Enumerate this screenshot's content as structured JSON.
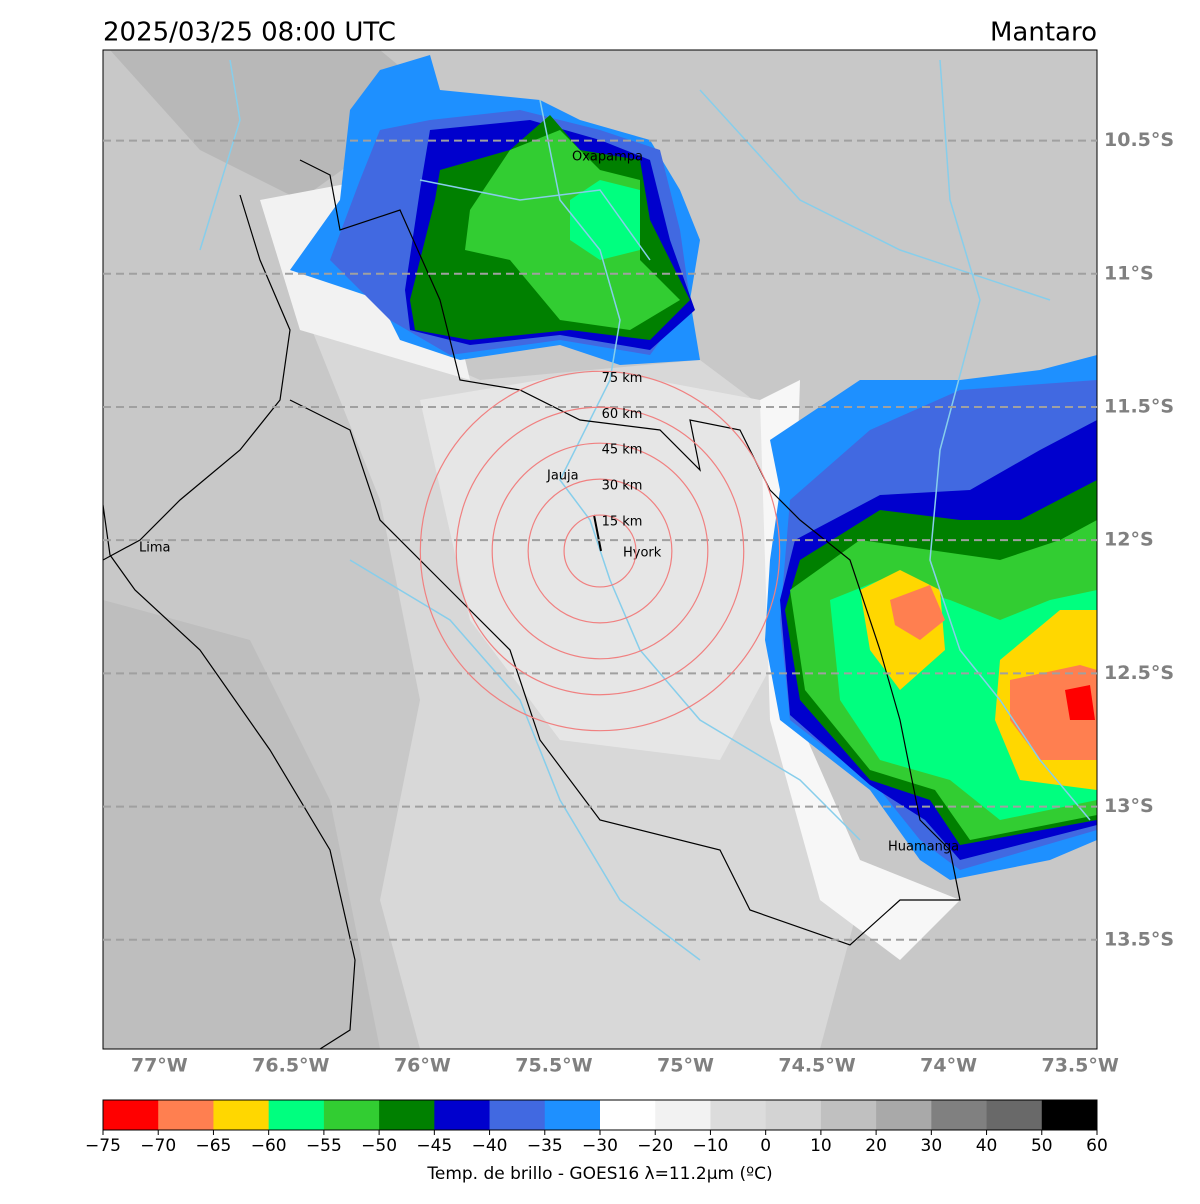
{
  "header": {
    "title": "2025/03/25 08:00 UTC",
    "region": "Mantaro"
  },
  "map": {
    "xlim": [
      -77.214,
      -73.436
    ],
    "ylim": [
      -13.91,
      -10.16
    ],
    "grid": true,
    "xticks": [
      {
        "value": -77,
        "label": "77°W"
      },
      {
        "value": -76.5,
        "label": "76.5°W"
      },
      {
        "value": -76,
        "label": "76°W"
      },
      {
        "value": -75.5,
        "label": "75.5°W"
      },
      {
        "value": -75,
        "label": "75°W"
      },
      {
        "value": -74.5,
        "label": "74.5°W"
      },
      {
        "value": -74,
        "label": "74°W"
      },
      {
        "value": -73.5,
        "label": "73.5°W"
      }
    ],
    "yticks": [
      {
        "value": -10.5,
        "label": "10.5°S"
      },
      {
        "value": -11,
        "label": "11°S"
      },
      {
        "value": -11.5,
        "label": "11.5°S"
      },
      {
        "value": -12,
        "label": "12°S"
      },
      {
        "value": -12.5,
        "label": "12.5°S"
      },
      {
        "value": -13,
        "label": "13°S"
      },
      {
        "value": -13.5,
        "label": "13.5°S"
      }
    ]
  },
  "cities": [
    "Oxapampa",
    "Jauja",
    "Hyork",
    "Lima",
    "Huamanga"
  ],
  "rings": {
    "values": [
      15,
      30,
      45,
      60,
      75
    ],
    "value_labels": [
      "15 km",
      "30 km",
      "45 km",
      "60 km",
      "75 km"
    ],
    "color": "#f08080"
  },
  "colorbar": {
    "label": "Temp. de brillo - GOES16 λ=11.2μm (ºC)",
    "ticks": [
      {
        "value": -75,
        "label": "−75"
      },
      {
        "value": -70,
        "label": "−70"
      },
      {
        "value": -65,
        "label": "−65"
      },
      {
        "value": -60,
        "label": "−60"
      },
      {
        "value": -55,
        "label": "−55"
      },
      {
        "value": -50,
        "label": "−50"
      },
      {
        "value": -45,
        "label": "−45"
      },
      {
        "value": -40,
        "label": "−40"
      },
      {
        "value": -35,
        "label": "−35"
      },
      {
        "value": -30,
        "label": "−30"
      },
      {
        "value": -20,
        "label": "−20"
      },
      {
        "value": -10,
        "label": "−10"
      },
      0,
      10,
      20,
      30,
      40,
      50,
      60
    ],
    "colors": [
      "#ff0000",
      "#ff7f50",
      "#ffd700",
      "#00ff7f",
      "#32cd32",
      "#008000",
      "#0000cd",
      "#4169e1",
      "#1e90ff",
      "#ffffff",
      "#f2f2f2",
      "#dcdcdc",
      "#d3d3d3",
      "#c0c0c0",
      "#a9a9a9",
      "#808080",
      "#696969",
      "#000000"
    ]
  }
}
